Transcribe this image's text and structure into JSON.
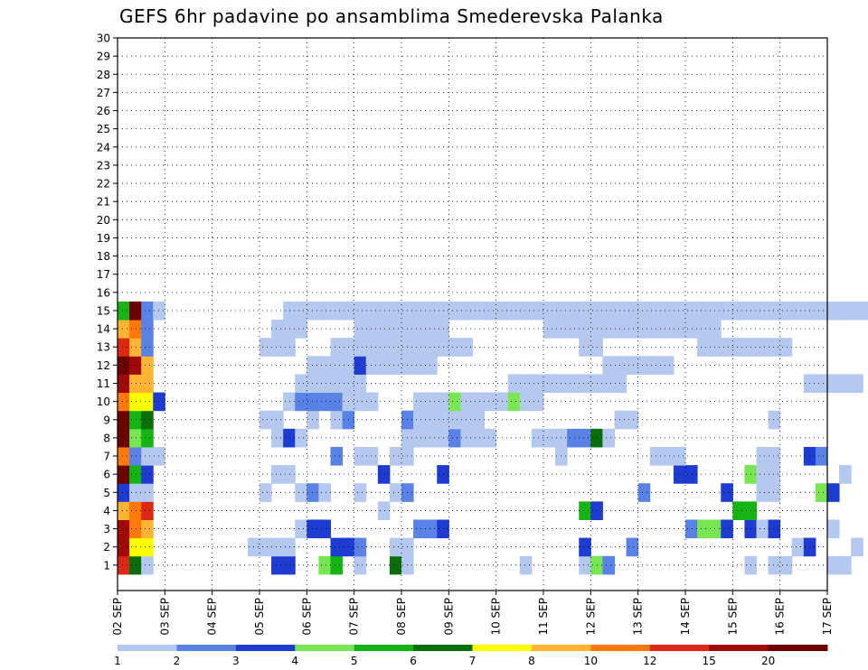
{
  "chart_data": {
    "type": "heatmap",
    "title": "GEFS 6hr padavine po ansamblima Smederevska Palanka",
    "y_categories": [
      "1",
      "2",
      "3",
      "4",
      "5",
      "6",
      "7",
      "8",
      "9",
      "10",
      "11",
      "12",
      "13",
      "14",
      "15",
      "16",
      "17",
      "18",
      "19",
      "20",
      "21",
      "22",
      "23",
      "24",
      "25",
      "26",
      "27",
      "28",
      "29",
      "30"
    ],
    "x_date_labels": [
      "02 SEP",
      "03 SEP",
      "04 SEP",
      "05 SEP",
      "06 SEP",
      "07 SEP",
      "08 SEP",
      "09 SEP",
      "10 SEP",
      "11 SEP",
      "12 SEP",
      "13 SEP",
      "14 SEP",
      "15 SEP",
      "16 SEP",
      "17 SEP"
    ],
    "x_range_days": [
      2,
      17
    ],
    "step_hours": 6,
    "grid": true,
    "legend": {
      "placement": "bottom",
      "labels": [
        "1",
        "2",
        "3",
        "4",
        "5",
        "6",
        "7",
        "8",
        "10",
        "12",
        "15",
        "20"
      ],
      "colors": [
        "#b4c8f0",
        "#5a82e6",
        "#1e3cd2",
        "#78e650",
        "#14b414",
        "#0a6e0a",
        "#ffff00",
        "#ffb432",
        "#ff780a",
        "#dc2814",
        "#a00a0a",
        "#6e0000"
      ]
    },
    "cells": [
      [
        1,
        0,
        10
      ],
      [
        1,
        1,
        6
      ],
      [
        1,
        2,
        1
      ],
      [
        1,
        13,
        3
      ],
      [
        1,
        14,
        3
      ],
      [
        1,
        17,
        4
      ],
      [
        1,
        18,
        5
      ],
      [
        1,
        20,
        1
      ],
      [
        1,
        23,
        6
      ],
      [
        1,
        24,
        1
      ],
      [
        1,
        34,
        1
      ],
      [
        1,
        39,
        1
      ],
      [
        1,
        40,
        4
      ],
      [
        1,
        41,
        2
      ],
      [
        1,
        53,
        1
      ],
      [
        1,
        55,
        1
      ],
      [
        1,
        56,
        1
      ],
      [
        1,
        60,
        1
      ],
      [
        1,
        61,
        1
      ],
      [
        2,
        0,
        11
      ],
      [
        2,
        1,
        7
      ],
      [
        2,
        2,
        7
      ],
      [
        2,
        11,
        1
      ],
      [
        2,
        12,
        1
      ],
      [
        2,
        13,
        1
      ],
      [
        2,
        14,
        1
      ],
      [
        2,
        18,
        3
      ],
      [
        2,
        19,
        3
      ],
      [
        2,
        20,
        2
      ],
      [
        2,
        23,
        1
      ],
      [
        2,
        24,
        1
      ],
      [
        2,
        39,
        3
      ],
      [
        2,
        43,
        2
      ],
      [
        2,
        57,
        1
      ],
      [
        2,
        58,
        3
      ],
      [
        2,
        62,
        1
      ],
      [
        3,
        0,
        11
      ],
      [
        3,
        1,
        9
      ],
      [
        3,
        2,
        8
      ],
      [
        3,
        15,
        1
      ],
      [
        3,
        16,
        3
      ],
      [
        3,
        17,
        3
      ],
      [
        3,
        25,
        2
      ],
      [
        3,
        26,
        2
      ],
      [
        3,
        27,
        3
      ],
      [
        3,
        48,
        2
      ],
      [
        3,
        49,
        4
      ],
      [
        3,
        50,
        4
      ],
      [
        3,
        51,
        3
      ],
      [
        3,
        53,
        3
      ],
      [
        3,
        54,
        1
      ],
      [
        3,
        55,
        3
      ],
      [
        3,
        60,
        1
      ],
      [
        4,
        0,
        8
      ],
      [
        4,
        1,
        9
      ],
      [
        4,
        2,
        10
      ],
      [
        4,
        22,
        1
      ],
      [
        4,
        39,
        5
      ],
      [
        4,
        40,
        3
      ],
      [
        4,
        52,
        5
      ],
      [
        4,
        53,
        5
      ],
      [
        5,
        0,
        3
      ],
      [
        5,
        1,
        1
      ],
      [
        5,
        2,
        1
      ],
      [
        5,
        12,
        1
      ],
      [
        5,
        15,
        1
      ],
      [
        5,
        16,
        2
      ],
      [
        5,
        17,
        1
      ],
      [
        5,
        20,
        1
      ],
      [
        5,
        23,
        1
      ],
      [
        5,
        24,
        2
      ],
      [
        5,
        44,
        2
      ],
      [
        5,
        51,
        3
      ],
      [
        5,
        54,
        1
      ],
      [
        5,
        55,
        1
      ],
      [
        5,
        59,
        4
      ],
      [
        5,
        60,
        3
      ],
      [
        6,
        0,
        12
      ],
      [
        6,
        1,
        5
      ],
      [
        6,
        2,
        3
      ],
      [
        6,
        13,
        1
      ],
      [
        6,
        14,
        1
      ],
      [
        6,
        22,
        3
      ],
      [
        6,
        27,
        3
      ],
      [
        6,
        47,
        3
      ],
      [
        6,
        48,
        3
      ],
      [
        6,
        53,
        4
      ],
      [
        6,
        54,
        1
      ],
      [
        6,
        55,
        1
      ],
      [
        6,
        61,
        1
      ],
      [
        7,
        0,
        9
      ],
      [
        7,
        1,
        2
      ],
      [
        7,
        2,
        1
      ],
      [
        7,
        3,
        1
      ],
      [
        7,
        18,
        2
      ],
      [
        7,
        20,
        1
      ],
      [
        7,
        21,
        1
      ],
      [
        7,
        23,
        1
      ],
      [
        7,
        24,
        1
      ],
      [
        7,
        37,
        1
      ],
      [
        7,
        45,
        1
      ],
      [
        7,
        46,
        1
      ],
      [
        7,
        47,
        1
      ],
      [
        7,
        54,
        1
      ],
      [
        7,
        55,
        1
      ],
      [
        7,
        58,
        3
      ],
      [
        7,
        59,
        2
      ],
      [
        8,
        0,
        12
      ],
      [
        8,
        1,
        4
      ],
      [
        8,
        2,
        5
      ],
      [
        8,
        13,
        1
      ],
      [
        8,
        14,
        3
      ],
      [
        8,
        15,
        1
      ],
      [
        8,
        24,
        1
      ],
      [
        8,
        25,
        1
      ],
      [
        8,
        26,
        1
      ],
      [
        8,
        27,
        1
      ],
      [
        8,
        28,
        2
      ],
      [
        8,
        29,
        1
      ],
      [
        8,
        30,
        1
      ],
      [
        8,
        31,
        1
      ],
      [
        8,
        35,
        1
      ],
      [
        8,
        36,
        1
      ],
      [
        8,
        37,
        1
      ],
      [
        8,
        38,
        2
      ],
      [
        8,
        39,
        2
      ],
      [
        8,
        40,
        6
      ],
      [
        8,
        41,
        1
      ],
      [
        9,
        0,
        12
      ],
      [
        9,
        1,
        5
      ],
      [
        9,
        2,
        6
      ],
      [
        9,
        12,
        1
      ],
      [
        9,
        13,
        1
      ],
      [
        9,
        16,
        1
      ],
      [
        9,
        18,
        1
      ],
      [
        9,
        19,
        2
      ],
      [
        9,
        24,
        2
      ],
      [
        9,
        25,
        1
      ],
      [
        9,
        26,
        1
      ],
      [
        9,
        27,
        1
      ],
      [
        9,
        28,
        1
      ],
      [
        9,
        29,
        1
      ],
      [
        9,
        30,
        1
      ],
      [
        9,
        42,
        1
      ],
      [
        9,
        43,
        1
      ],
      [
        9,
        55,
        1
      ],
      [
        10,
        0,
        9
      ],
      [
        10,
        1,
        7
      ],
      [
        10,
        2,
        7
      ],
      [
        10,
        3,
        3
      ],
      [
        10,
        14,
        1
      ],
      [
        10,
        15,
        2
      ],
      [
        10,
        16,
        2
      ],
      [
        10,
        17,
        2
      ],
      [
        10,
        18,
        2
      ],
      [
        10,
        19,
        1
      ],
      [
        10,
        20,
        1
      ],
      [
        10,
        21,
        1
      ],
      [
        10,
        25,
        1
      ],
      [
        10,
        26,
        1
      ],
      [
        10,
        27,
        1
      ],
      [
        10,
        28,
        4
      ],
      [
        10,
        29,
        1
      ],
      [
        10,
        30,
        1
      ],
      [
        10,
        31,
        1
      ],
      [
        10,
        32,
        1
      ],
      [
        10,
        33,
        4
      ],
      [
        10,
        34,
        1
      ],
      [
        10,
        35,
        1
      ],
      [
        11,
        0,
        11
      ],
      [
        11,
        1,
        8
      ],
      [
        11,
        2,
        8
      ],
      [
        11,
        15,
        1
      ],
      [
        11,
        16,
        1
      ],
      [
        11,
        17,
        1
      ],
      [
        11,
        18,
        1
      ],
      [
        11,
        19,
        1
      ],
      [
        11,
        20,
        1
      ],
      [
        11,
        33,
        1
      ],
      [
        11,
        34,
        1
      ],
      [
        11,
        35,
        1
      ],
      [
        11,
        36,
        1
      ],
      [
        11,
        37,
        1
      ],
      [
        11,
        38,
        1
      ],
      [
        11,
        39,
        1
      ],
      [
        11,
        40,
        1
      ],
      [
        11,
        41,
        1
      ],
      [
        11,
        42,
        1
      ],
      [
        11,
        58,
        1
      ],
      [
        11,
        59,
        1
      ],
      [
        11,
        60,
        1
      ],
      [
        11,
        61,
        1
      ],
      [
        11,
        62,
        1
      ],
      [
        12,
        0,
        12
      ],
      [
        12,
        1,
        11
      ],
      [
        12,
        2,
        8
      ],
      [
        12,
        16,
        1
      ],
      [
        12,
        17,
        1
      ],
      [
        12,
        18,
        1
      ],
      [
        12,
        19,
        1
      ],
      [
        12,
        20,
        3
      ],
      [
        12,
        21,
        1
      ],
      [
        12,
        22,
        1
      ],
      [
        12,
        23,
        1
      ],
      [
        12,
        24,
        1
      ],
      [
        12,
        25,
        1
      ],
      [
        12,
        26,
        1
      ],
      [
        12,
        41,
        1
      ],
      [
        12,
        42,
        1
      ],
      [
        12,
        43,
        1
      ],
      [
        12,
        44,
        1
      ],
      [
        12,
        45,
        1
      ],
      [
        12,
        46,
        1
      ],
      [
        13,
        0,
        10
      ],
      [
        13,
        1,
        8
      ],
      [
        13,
        2,
        2
      ],
      [
        13,
        12,
        1
      ],
      [
        13,
        13,
        1
      ],
      [
        13,
        14,
        1
      ],
      [
        13,
        18,
        1
      ],
      [
        13,
        19,
        1
      ],
      [
        13,
        20,
        1
      ],
      [
        13,
        21,
        1
      ],
      [
        13,
        22,
        1
      ],
      [
        13,
        23,
        1
      ],
      [
        13,
        24,
        1
      ],
      [
        13,
        25,
        1
      ],
      [
        13,
        26,
        1
      ],
      [
        13,
        27,
        1
      ],
      [
        13,
        28,
        1
      ],
      [
        13,
        29,
        1
      ],
      [
        13,
        39,
        1
      ],
      [
        13,
        40,
        1
      ],
      [
        13,
        49,
        1
      ],
      [
        13,
        50,
        1
      ],
      [
        13,
        51,
        1
      ],
      [
        13,
        52,
        1
      ],
      [
        13,
        53,
        1
      ],
      [
        13,
        54,
        1
      ],
      [
        13,
        55,
        1
      ],
      [
        13,
        56,
        1
      ],
      [
        14,
        0,
        8
      ],
      [
        14,
        1,
        9
      ],
      [
        14,
        2,
        2
      ],
      [
        14,
        13,
        1
      ],
      [
        14,
        14,
        1
      ],
      [
        14,
        15,
        1
      ],
      [
        14,
        20,
        1
      ],
      [
        14,
        21,
        1
      ],
      [
        14,
        22,
        1
      ],
      [
        14,
        23,
        1
      ],
      [
        14,
        24,
        1
      ],
      [
        14,
        25,
        1
      ],
      [
        14,
        26,
        1
      ],
      [
        14,
        27,
        1
      ],
      [
        14,
        36,
        1
      ],
      [
        14,
        37,
        1
      ],
      [
        14,
        38,
        1
      ],
      [
        14,
        39,
        1
      ],
      [
        14,
        40,
        1
      ],
      [
        14,
        41,
        1
      ],
      [
        14,
        42,
        1
      ],
      [
        14,
        43,
        1
      ],
      [
        14,
        44,
        1
      ],
      [
        14,
        45,
        1
      ],
      [
        14,
        46,
        1
      ],
      [
        14,
        47,
        1
      ],
      [
        14,
        48,
        1
      ],
      [
        14,
        49,
        1
      ],
      [
        14,
        50,
        1
      ],
      [
        15,
        0,
        5
      ],
      [
        15,
        1,
        12
      ],
      [
        15,
        2,
        2
      ],
      [
        15,
        3,
        1
      ],
      [
        15,
        14,
        1
      ],
      [
        15,
        15,
        1
      ],
      [
        15,
        16,
        1
      ],
      [
        15,
        17,
        1
      ],
      [
        15,
        18,
        1
      ],
      [
        15,
        19,
        1
      ],
      [
        15,
        20,
        1
      ],
      [
        15,
        21,
        1
      ],
      [
        15,
        22,
        1
      ],
      [
        15,
        23,
        1
      ],
      [
        15,
        24,
        1
      ],
      [
        15,
        25,
        1
      ],
      [
        15,
        26,
        1
      ],
      [
        15,
        27,
        1
      ],
      [
        15,
        28,
        1
      ],
      [
        15,
        29,
        1
      ],
      [
        15,
        30,
        1
      ],
      [
        15,
        31,
        1
      ],
      [
        15,
        32,
        1
      ],
      [
        15,
        33,
        1
      ],
      [
        15,
        34,
        1
      ],
      [
        15,
        35,
        1
      ],
      [
        15,
        36,
        1
      ],
      [
        15,
        37,
        1
      ],
      [
        15,
        38,
        1
      ],
      [
        15,
        39,
        1
      ],
      [
        15,
        40,
        1
      ],
      [
        15,
        41,
        1
      ],
      [
        15,
        42,
        1
      ],
      [
        15,
        43,
        1
      ],
      [
        15,
        44,
        1
      ],
      [
        15,
        45,
        1
      ],
      [
        15,
        46,
        1
      ],
      [
        15,
        47,
        1
      ],
      [
        15,
        48,
        1
      ],
      [
        15,
        49,
        1
      ],
      [
        15,
        50,
        1
      ],
      [
        15,
        51,
        1
      ],
      [
        15,
        52,
        1
      ],
      [
        15,
        53,
        1
      ],
      [
        15,
        54,
        1
      ],
      [
        15,
        55,
        1
      ],
      [
        15,
        56,
        1
      ],
      [
        15,
        57,
        1
      ],
      [
        15,
        58,
        1
      ],
      [
        15,
        59,
        1
      ],
      [
        15,
        60,
        1
      ],
      [
        15,
        61,
        1
      ],
      [
        15,
        62,
        1
      ],
      [
        15,
        63,
        1
      ]
    ]
  }
}
